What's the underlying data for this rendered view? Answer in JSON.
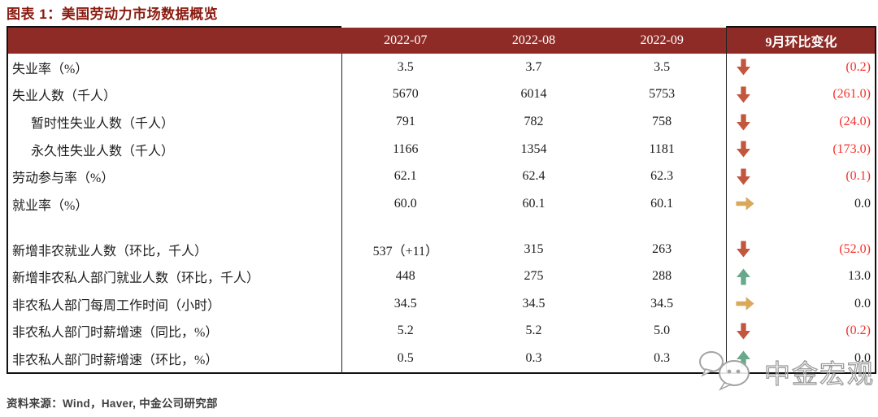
{
  "title": "图表 1：美国劳动力市场数据概览",
  "source": "资料来源：Wind，Haver, 中金公司研究部",
  "watermark_text": "中金宏观",
  "colors": {
    "header_bg": "#8f2b26",
    "title": "#8a1b10",
    "negative_red": "#f4312b",
    "arrow_down": "#c2573e",
    "arrow_up": "#68a88b",
    "arrow_flat": "#d9a85b"
  },
  "chart_data": {
    "type": "table",
    "title": "图表 1：美国劳动力市场数据概览",
    "columns": [
      "",
      "2022-07",
      "2022-08",
      "2022-09",
      "9月环比变化"
    ],
    "rows": [
      {
        "label": "失业率（%）",
        "indent": false,
        "values": [
          "3.5",
          "3.7",
          "3.5"
        ],
        "arrow": "down",
        "change": "(0.2)",
        "negative": true
      },
      {
        "label": "失业人数（千人）",
        "indent": false,
        "values": [
          "5670",
          "6014",
          "5753"
        ],
        "arrow": "down",
        "change": "(261.0)",
        "negative": true
      },
      {
        "label": "暂时性失业人数（千人）",
        "indent": true,
        "values": [
          "791",
          "782",
          "758"
        ],
        "arrow": "down",
        "change": "(24.0)",
        "negative": true
      },
      {
        "label": "永久性失业人数（千人）",
        "indent": true,
        "values": [
          "1166",
          "1354",
          "1181"
        ],
        "arrow": "down",
        "change": "(173.0)",
        "negative": true
      },
      {
        "label": "劳动参与率（%）",
        "indent": false,
        "values": [
          "62.1",
          "62.4",
          "62.3"
        ],
        "arrow": "down",
        "change": "(0.1)",
        "negative": true
      },
      {
        "label": "就业率（%）",
        "indent": false,
        "values": [
          "60.0",
          "60.1",
          "60.1"
        ],
        "arrow": "flat",
        "change": "0.0",
        "negative": false
      },
      {
        "blank": true
      },
      {
        "label": "新增非农就业人数（环比，千人）",
        "indent": false,
        "values": [
          "537（+11）",
          "315",
          "263"
        ],
        "arrow": "down",
        "change": "(52.0)",
        "negative": true
      },
      {
        "label": "新增非农私人部门就业人数（环比，千人）",
        "indent": false,
        "values": [
          "448",
          "275",
          "288"
        ],
        "arrow": "up",
        "change": "13.0",
        "negative": false
      },
      {
        "label": "非农私人部门每周工作时间（小时）",
        "indent": false,
        "values": [
          "34.5",
          "34.5",
          "34.5"
        ],
        "arrow": "flat",
        "change": "0.0",
        "negative": false
      },
      {
        "label": "非农私人部门时薪增速（同比，%）",
        "indent": false,
        "values": [
          "5.2",
          "5.2",
          "5.0"
        ],
        "arrow": "down",
        "change": "(0.2)",
        "negative": true
      },
      {
        "label": "非农私人部门时薪增速（环比，%）",
        "indent": false,
        "values": [
          "0.5",
          "0.3",
          "0.3"
        ],
        "arrow": "up",
        "change": "0.0",
        "negative": false
      }
    ]
  }
}
